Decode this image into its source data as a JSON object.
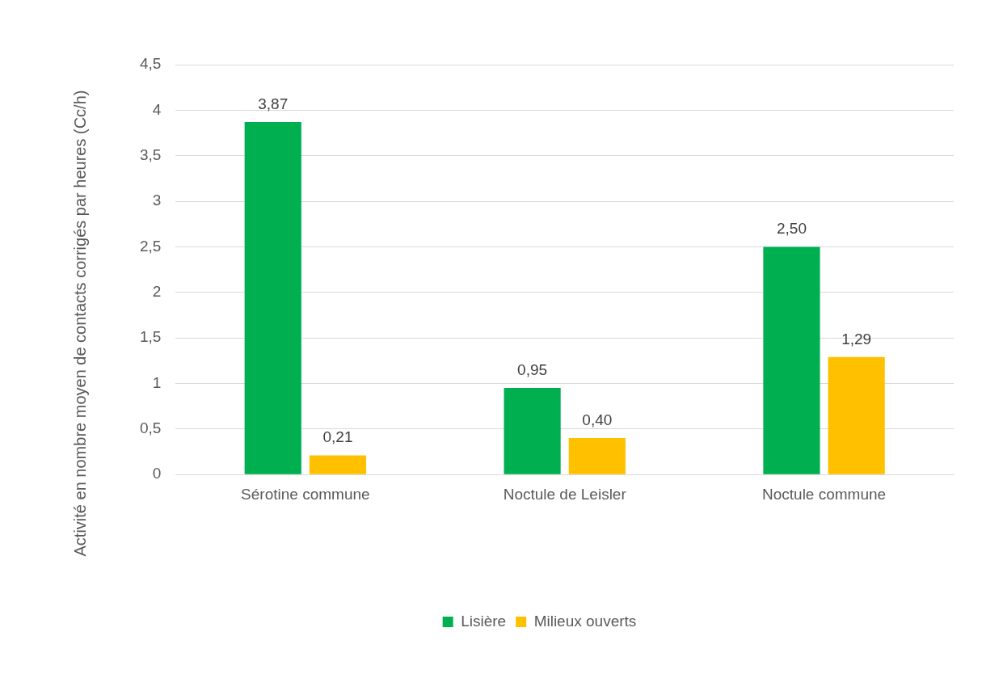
{
  "chart_data": {
    "type": "bar",
    "ylabel": "Activité en nombre moyen de contacts corrigés par heures (Cc/h)",
    "categories": [
      "Sérotine commune",
      "Noctule de Leisler",
      "Noctule commune"
    ],
    "series": [
      {
        "name": "Lisière",
        "color": "#00b050",
        "values": [
          3.87,
          0.95,
          2.5
        ],
        "value_labels": [
          "3,87",
          "0,95",
          "2,50"
        ]
      },
      {
        "name": "Milieux ouverts",
        "color": "#ffc000",
        "values": [
          0.21,
          0.4,
          1.29
        ],
        "value_labels": [
          "0,21",
          "0,40",
          "1,29"
        ]
      }
    ],
    "ylim": [
      0,
      4.5
    ],
    "yticks": [
      0,
      {
        "value": 0.5,
        "label": "0,5"
      },
      1,
      {
        "value": 1.5,
        "label": "1,5"
      },
      2,
      {
        "value": 2.5,
        "label": "2,5"
      },
      3,
      {
        "value": 3.5,
        "label": "3,5"
      },
      4,
      {
        "value": 4.5,
        "label": "4,5"
      }
    ],
    "grid": "y",
    "legend": "bottom"
  }
}
